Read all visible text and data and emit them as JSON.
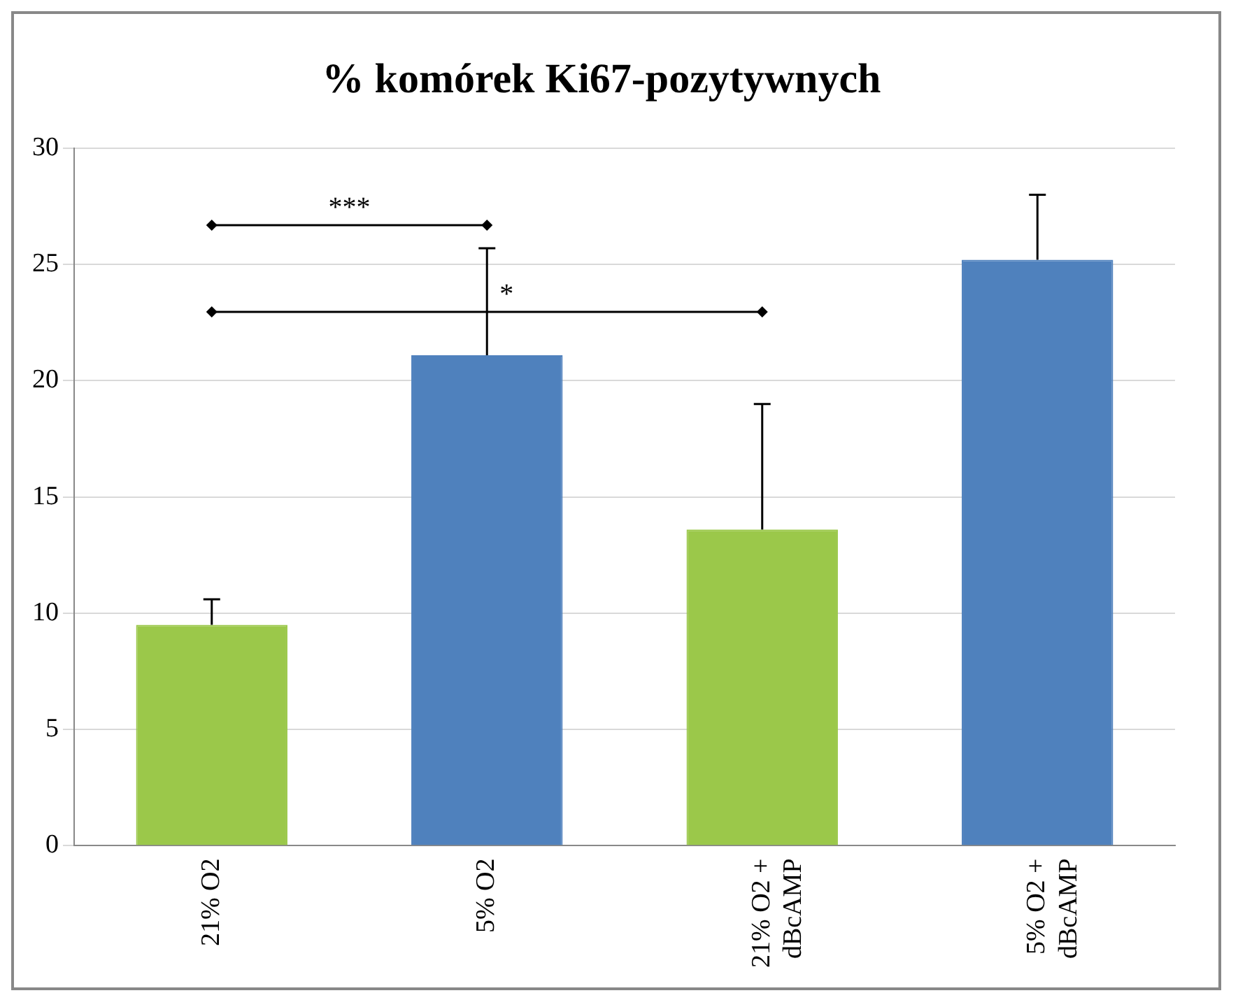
{
  "chart_data": {
    "type": "bar",
    "title": "% komórek Ki67-pozytywnych",
    "categories": [
      "21% O2",
      "5% O2",
      "21% O2 + dBcAMP",
      "5% O2 + dBcAMP"
    ],
    "values": [
      9.5,
      21.1,
      13.6,
      25.2
    ],
    "colors": [
      "#9bc84a",
      "#4f81bd",
      "#9bc84a",
      "#4f81bd"
    ],
    "errors": [
      [
        9.5,
        10.6
      ],
      [
        21.1,
        25.7
      ],
      [
        13.6,
        19.0
      ],
      [
        25.2,
        28.0
      ]
    ],
    "ylim": [
      0,
      30
    ],
    "yticks": [
      0,
      5,
      10,
      15,
      20,
      25,
      30
    ],
    "grid": "y",
    "legend": false,
    "annotations": [
      "***",
      "*"
    ]
  }
}
